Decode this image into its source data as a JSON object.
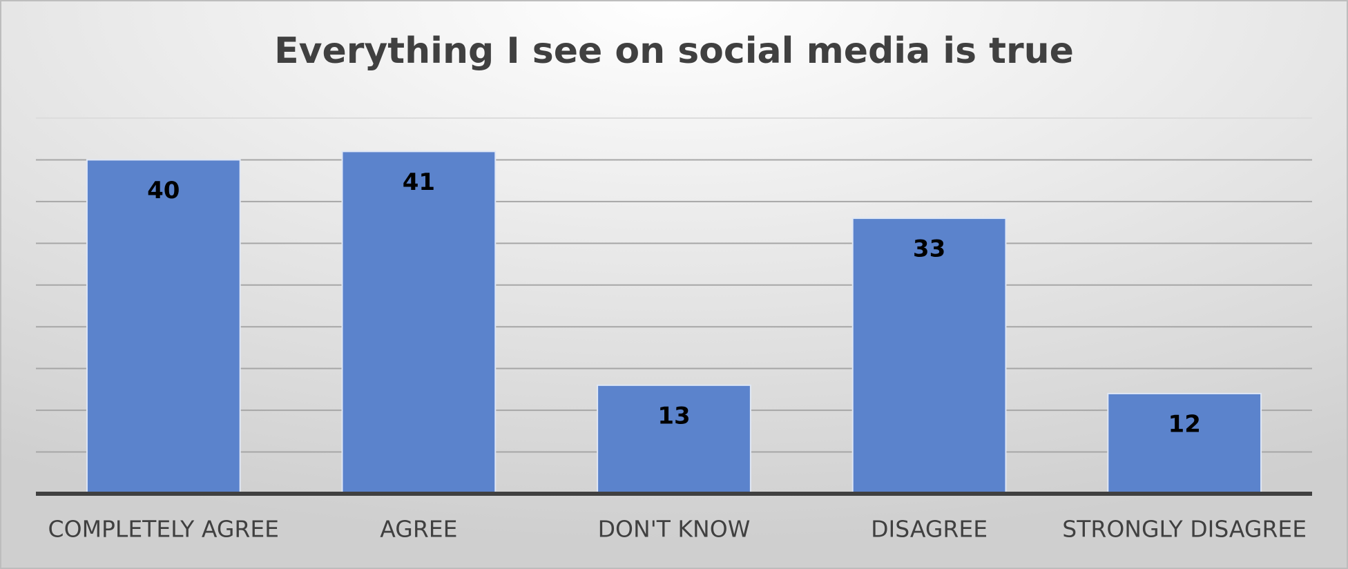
{
  "chart_data": {
    "type": "bar",
    "title": "Everything I see on social media is true",
    "categories": [
      "COMPLETELY AGREE",
      "AGREE",
      "DON'T KNOW",
      "DISAGREE",
      "STRONGLY DISAGREE"
    ],
    "values": [
      40,
      41,
      13,
      33,
      12
    ],
    "color": "#5b83cc",
    "ylim": [
      0,
      45
    ],
    "yticks": [
      0,
      5,
      10,
      15,
      20,
      25,
      30,
      35,
      40,
      45
    ],
    "grid": true
  }
}
